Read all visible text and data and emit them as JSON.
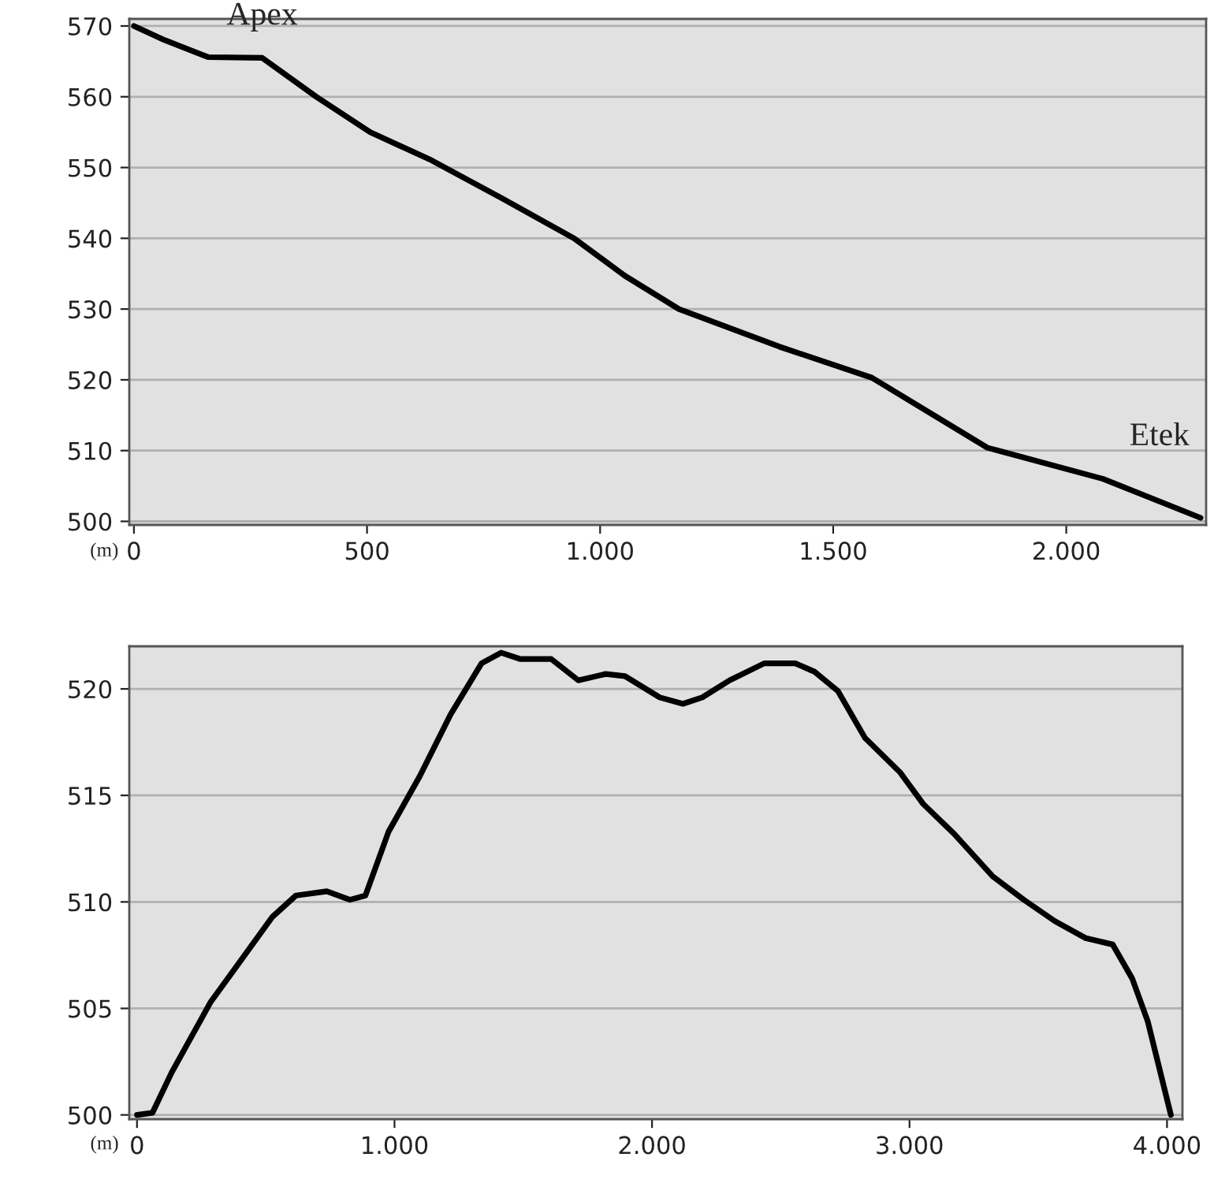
{
  "chart_data": [
    {
      "type": "line",
      "xlim": [
        -10,
        2300
      ],
      "ylim": [
        499.5,
        571
      ],
      "xticks": [
        0,
        500,
        {
          "value": 1000,
          "label": "1.000"
        },
        {
          "value": 1500,
          "label": "1.500"
        },
        {
          "value": 2000,
          "label": "2.000"
        }
      ],
      "yticks": [
        500,
        510,
        520,
        530,
        540,
        550,
        560,
        570
      ],
      "grid": "y",
      "annotations": [
        "(m)",
        {
          "text": "Apex",
          "x": 275,
          "y": 565.5
        },
        {
          "text": "Etek",
          "x": 2288,
          "y": 500.5
        }
      ],
      "series": [
        {
          "color": "#000000",
          "x": [
            0,
            66,
            159,
            275,
            391,
            507,
            639,
            788,
            944,
            1053,
            1169,
            1384,
            1583,
            1831,
            2079,
            2288
          ],
          "values": [
            570,
            568,
            565.6,
            565.5,
            560,
            555,
            551,
            545.7,
            540,
            534.7,
            530,
            524.7,
            520.3,
            510.4,
            506,
            500.5
          ]
        }
      ]
    },
    {
      "type": "line",
      "xlim": [
        -30,
        4060
      ],
      "ylim": [
        499.8,
        522
      ],
      "xticks": [
        0,
        {
          "value": 1000,
          "label": "1.000"
        },
        {
          "value": 2000,
          "label": "2.000"
        },
        {
          "value": 3000,
          "label": "3.000"
        },
        {
          "value": 4000,
          "label": "4.000"
        }
      ],
      "yticks": [
        500,
        505,
        510,
        515,
        520
      ],
      "grid": "y",
      "annotations": [
        "(m)"
      ],
      "series": [
        {
          "color": "#000000",
          "x": [
            0,
            60,
            135,
            286,
            376,
            526,
            617,
            737,
            827,
            887,
            977,
            1098,
            1218,
            1338,
            1414,
            1489,
            1609,
            1714,
            1820,
            1895,
            2030,
            2120,
            2195,
            2301,
            2436,
            2556,
            2632,
            2722,
            2827,
            2962,
            3053,
            3173,
            3323,
            3444,
            3564,
            3684,
            3789,
            3865,
            3925,
            4015
          ],
          "values": [
            500,
            500.1,
            502,
            505.3,
            506.8,
            509.3,
            510.3,
            510.5,
            510.1,
            510.3,
            513.3,
            515.9,
            518.8,
            521.2,
            521.7,
            521.4,
            521.4,
            520.4,
            520.7,
            520.6,
            519.6,
            519.3,
            519.6,
            520.4,
            521.2,
            521.2,
            520.8,
            519.9,
            517.7,
            516.1,
            514.6,
            513.2,
            511.2,
            510.1,
            509.1,
            508.3,
            508.0,
            506.4,
            504.4,
            500
          ]
        }
      ]
    }
  ]
}
